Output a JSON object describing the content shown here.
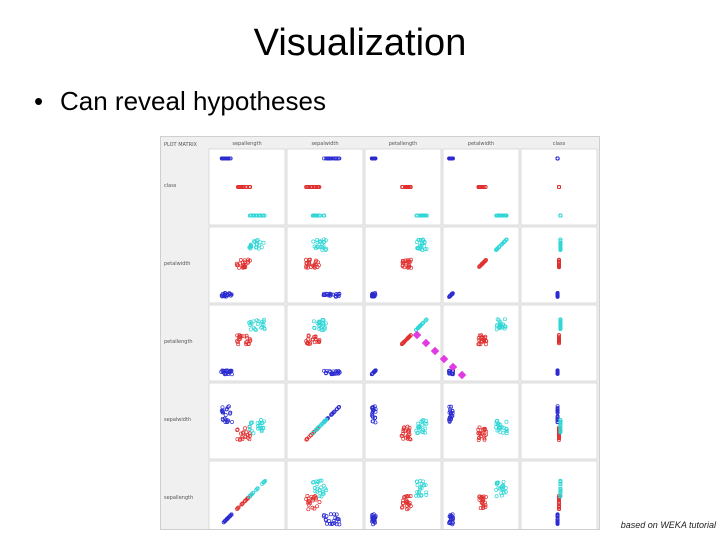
{
  "slide": {
    "title": "Visualization",
    "bullet_symbol": "•",
    "bullet_text": "Can reveal hypotheses",
    "credit": "based on WEKA tutorial"
  },
  "matrix": {
    "corner_label": "PLOT MATRIX",
    "columns": [
      "sepallength",
      "sepalwidth",
      "petallength",
      "petalwidth",
      "class"
    ],
    "rows": [
      "class",
      "petalwidth",
      "petallength",
      "sepalwidth",
      "sepallength"
    ],
    "colors": {
      "setosa": "#2b2bd0",
      "versicolor": "#e03030",
      "virginica": "#2fd6d6",
      "highlight": "#e23ae2",
      "panel_bg": "#ffffff",
      "frame_bg": "#f0f0f0",
      "grid": "#c8c8c8"
    }
  }
}
